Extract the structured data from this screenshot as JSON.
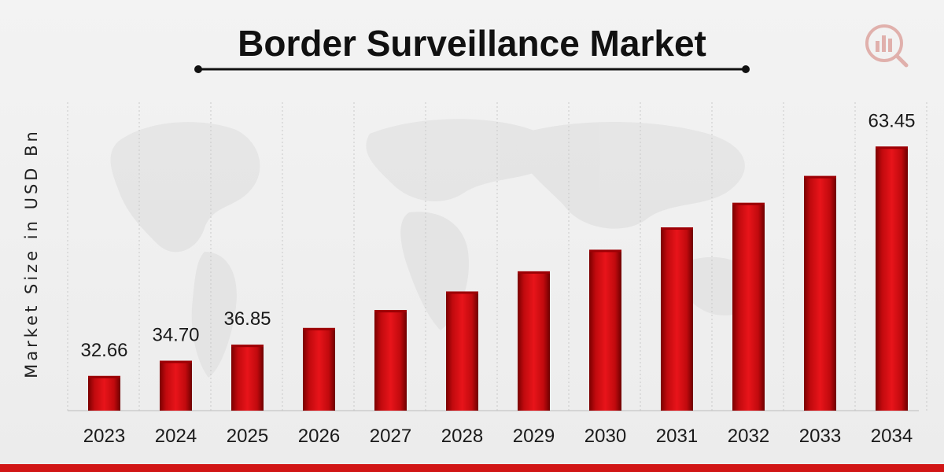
{
  "chart_data": {
    "type": "bar",
    "title": "Border Surveillance Market",
    "xlabel": "",
    "ylabel": "Market Size in USD Bn",
    "categories": [
      "2023",
      "2024",
      "2025",
      "2026",
      "2027",
      "2028",
      "2029",
      "2030",
      "2031",
      "2032",
      "2033",
      "2034"
    ],
    "values": [
      32.66,
      34.7,
      36.85,
      39.1,
      41.5,
      44.0,
      46.7,
      49.6,
      52.6,
      55.9,
      59.5,
      63.45
    ],
    "value_labels": [
      "32.66",
      "34.70",
      "36.85",
      "",
      "",
      "",
      "",
      "",
      "",
      "",
      "",
      "63.45"
    ],
    "grid": true,
    "bar_color": "#d10f14"
  }
}
